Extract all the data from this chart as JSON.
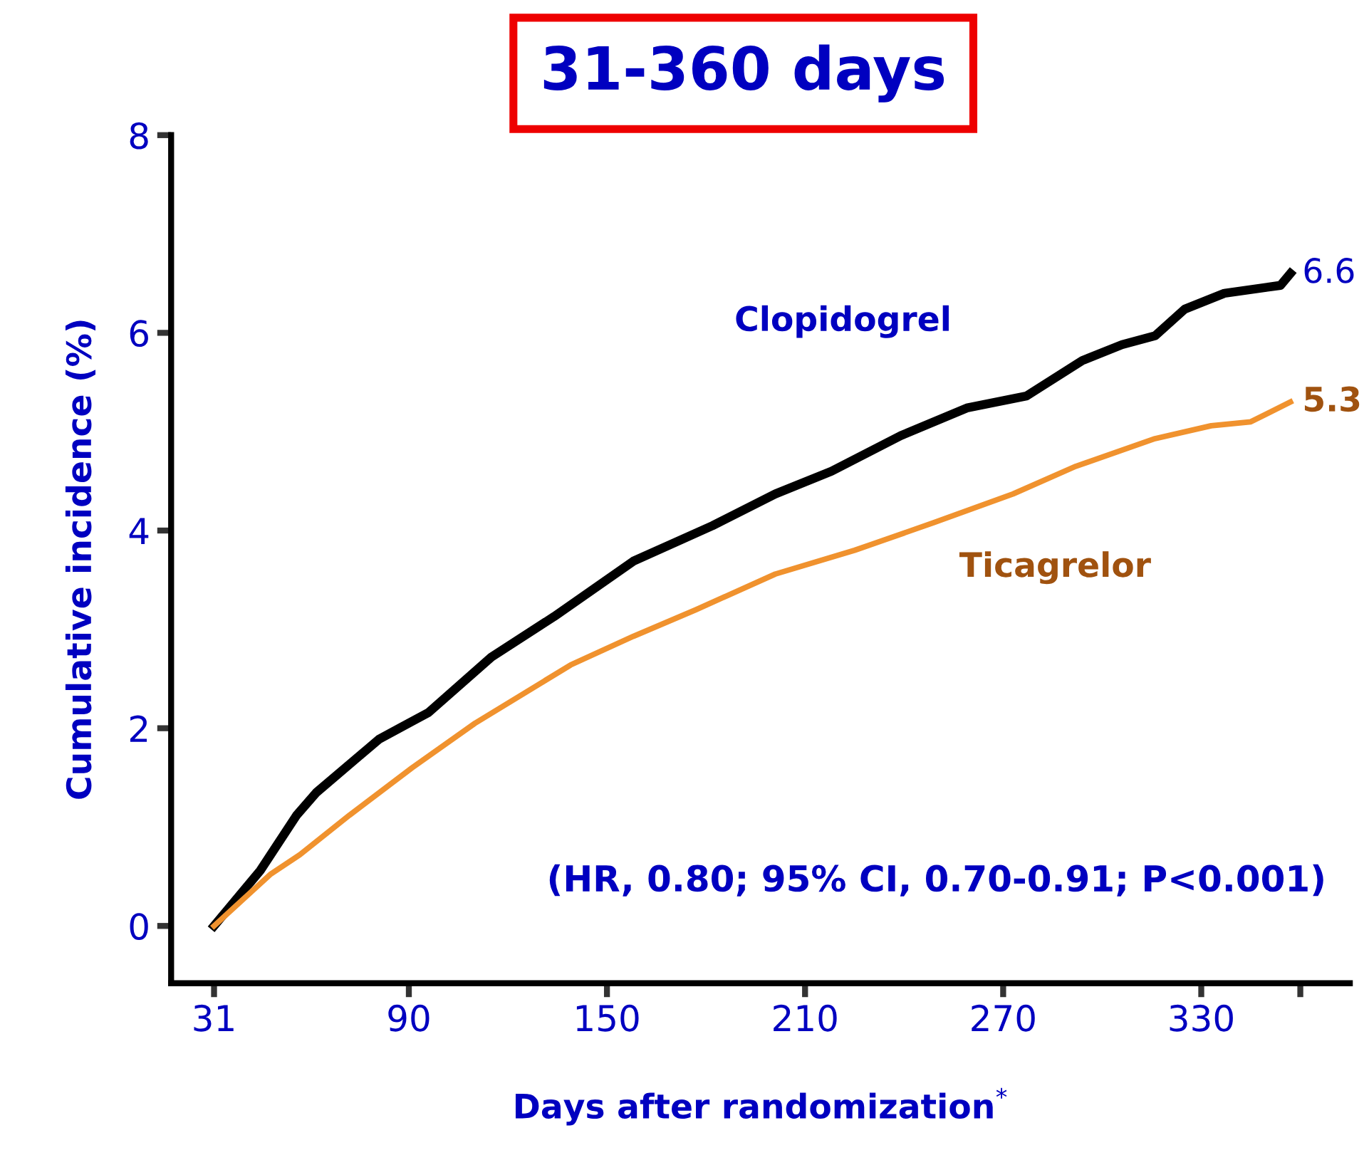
{
  "chart_data": {
    "type": "line",
    "title": "31-360 days",
    "xlabel": "Days after randomization$^{*}$",
    "ylabel": "Cumulative incidence (%)",
    "xlim": [
      18,
      375
    ],
    "ylim": [
      -0.58,
      8
    ],
    "xticks": [
      31,
      90,
      150,
      210,
      270,
      330,
      {
        "value": 360,
        "label": null
      }
    ],
    "yticks": [
      0,
      2,
      4,
      6,
      8
    ],
    "grid": false,
    "legend": false,
    "marker": "none",
    "line_style": "solid",
    "series": [
      {
        "name": "Clopidogrel",
        "color": "#000000",
        "x": [
          31,
          45,
          56,
          62,
          81,
          96,
          115,
          134,
          158,
          182,
          201,
          218,
          239,
          259,
          277,
          294,
          306,
          316,
          325,
          337,
          354,
          357
        ],
        "values": [
          0,
          0.56,
          1.12,
          1.35,
          1.89,
          2.16,
          2.72,
          3.13,
          3.69,
          4.05,
          4.37,
          4.6,
          4.96,
          5.24,
          5.36,
          5.72,
          5.88,
          5.97,
          6.24,
          6.4,
          6.48,
          6.6
        ],
        "value_labels": [
          null,
          null,
          null,
          null,
          null,
          null,
          null,
          null,
          null,
          null,
          null,
          null,
          null,
          null,
          null,
          null,
          null,
          null,
          null,
          null,
          null,
          "6.6"
        ]
      },
      {
        "name": "Ticagrelor",
        "color": "#f0922e",
        "x": [
          31,
          48,
          57,
          72,
          91,
          110,
          139,
          158,
          177,
          201,
          225,
          249,
          273,
          292,
          316,
          333,
          345,
          357
        ],
        "values": [
          0,
          0.52,
          0.72,
          1.12,
          1.6,
          2.05,
          2.64,
          2.93,
          3.2,
          3.56,
          3.8,
          4.08,
          4.37,
          4.65,
          4.93,
          5.06,
          5.1,
          5.3
        ],
        "value_labels": [
          null,
          null,
          null,
          null,
          null,
          null,
          null,
          null,
          null,
          null,
          null,
          null,
          null,
          null,
          null,
          null,
          null,
          "5.3"
        ]
      }
    ],
    "annotations": [
      "(HR, 0.80; 95% CI, 0.70-0.91; P<0.001)"
    ]
  }
}
